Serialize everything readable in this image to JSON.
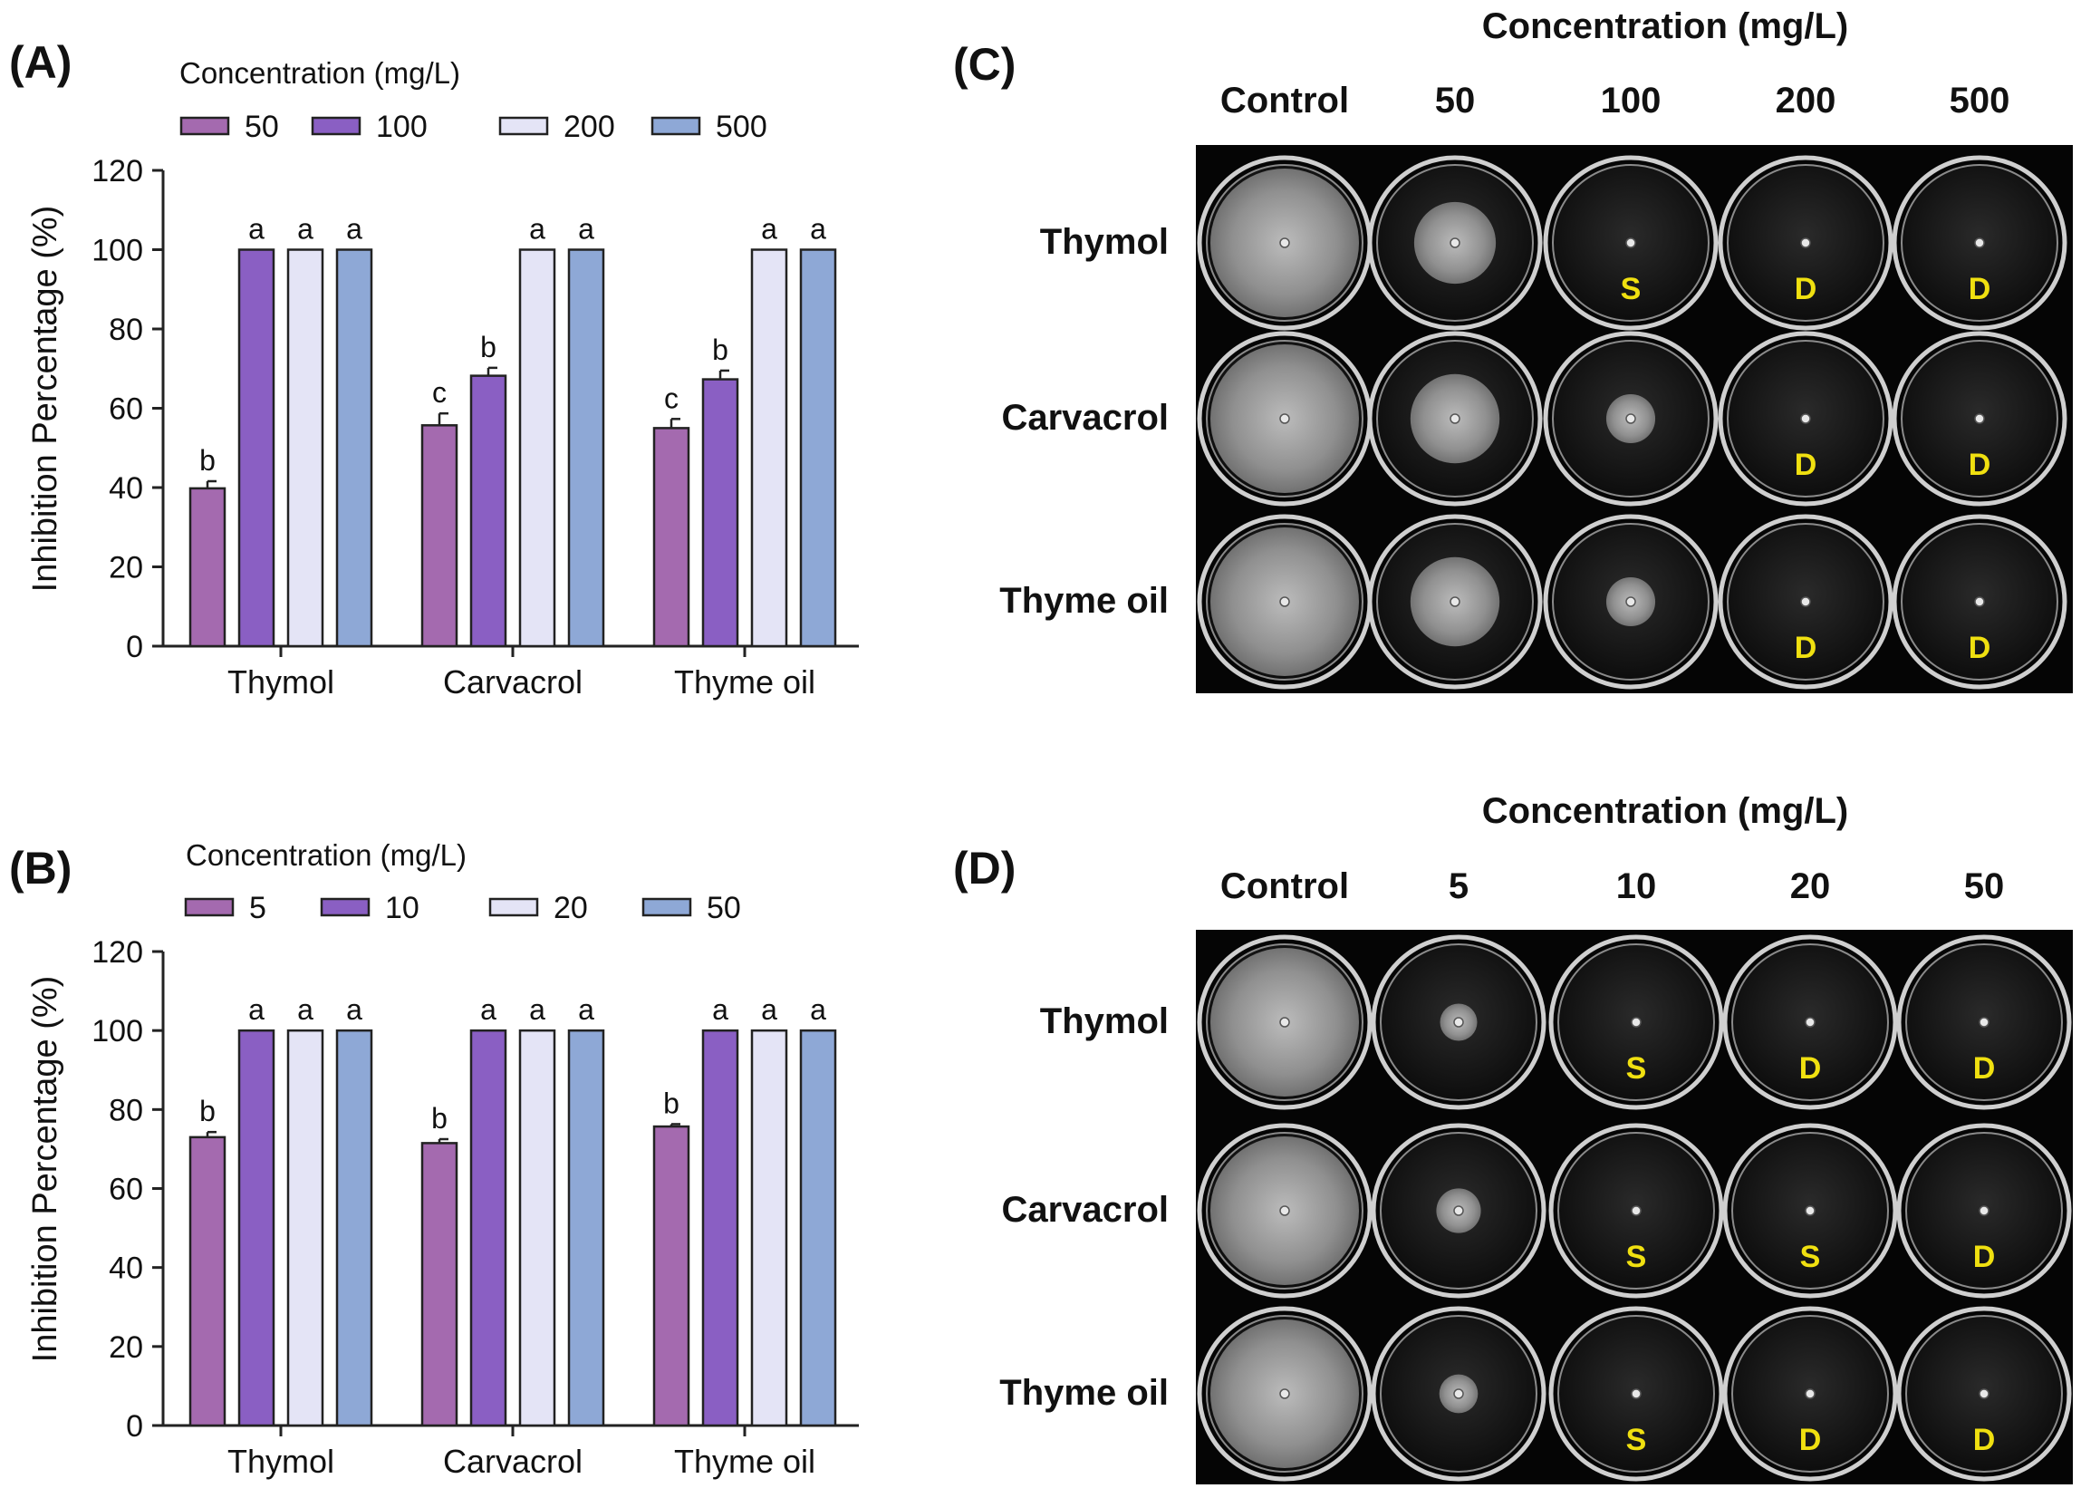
{
  "chart_data": [
    {
      "type": "bar",
      "panel": "(A)",
      "legend_title": "Concentration (mg/L)",
      "categories": [
        "Thymol",
        "Carvacrol",
        "Thyme oil"
      ],
      "ylabel": "Inhibition Percentage (%)",
      "ylim": [
        0,
        120
      ],
      "yticks": [
        0,
        20,
        40,
        60,
        80,
        100,
        120
      ],
      "series": [
        {
          "name": "50",
          "color": "#a46aaf",
          "values": [
            39.8,
            55.7,
            55.0
          ],
          "errors": [
            1.8,
            3.0,
            2.3
          ],
          "letters": [
            "b",
            "c",
            "c"
          ]
        },
        {
          "name": "100",
          "color": "#8a5fc3",
          "values": [
            100,
            68.2,
            67.3
          ],
          "errors": [
            0,
            2.0,
            2.2
          ],
          "letters": [
            "a",
            "b",
            "b"
          ]
        },
        {
          "name": "200",
          "color": "#e4e4f6",
          "values": [
            100,
            100,
            100
          ],
          "errors": [
            0,
            0,
            0
          ],
          "letters": [
            "a",
            "a",
            "a"
          ]
        },
        {
          "name": "500",
          "color": "#8ea8d6",
          "values": [
            100,
            100,
            100
          ],
          "errors": [
            0,
            0,
            0
          ],
          "letters": [
            "a",
            "a",
            "a"
          ]
        }
      ]
    },
    {
      "type": "bar",
      "panel": "(B)",
      "legend_title": "Concentration (mg/L)",
      "categories": [
        "Thymol",
        "Carvacrol",
        "Thyme oil"
      ],
      "ylabel": "Inhibition Percentage (%)",
      "ylim": [
        0,
        120
      ],
      "yticks": [
        0,
        20,
        40,
        60,
        80,
        100,
        120
      ],
      "series": [
        {
          "name": "5",
          "color": "#a46aaf",
          "values": [
            73.0,
            71.5,
            75.7
          ],
          "errors": [
            1.3,
            1.0,
            0.6
          ],
          "letters": [
            "b",
            "b",
            "b"
          ]
        },
        {
          "name": "10",
          "color": "#8a5fc3",
          "values": [
            100,
            100,
            100
          ],
          "errors": [
            0,
            0,
            0
          ],
          "letters": [
            "a",
            "a",
            "a"
          ]
        },
        {
          "name": "20",
          "color": "#e4e4f6",
          "values": [
            100,
            100,
            100
          ],
          "errors": [
            0,
            0,
            0
          ],
          "letters": [
            "a",
            "a",
            "a"
          ]
        },
        {
          "name": "50",
          "color": "#8ea8d6",
          "values": [
            100,
            100,
            100
          ],
          "errors": [
            0,
            0,
            0
          ],
          "letters": [
            "a",
            "a",
            "a"
          ]
        }
      ]
    }
  ],
  "photo_panels": [
    {
      "panel": "(C)",
      "title": "Concentration (mg/L)",
      "columns": [
        "Control",
        "50",
        "100",
        "200",
        "500"
      ],
      "rows": [
        {
          "label": "Thymol",
          "growth": [
            1.0,
            0.55,
            0.0,
            0.0,
            0.0
          ],
          "marks": [
            "",
            "",
            "S",
            "D",
            "D"
          ]
        },
        {
          "label": "Carvacrol",
          "growth": [
            1.0,
            0.6,
            0.33,
            0.0,
            0.0
          ],
          "marks": [
            "",
            "",
            "",
            "D",
            "D"
          ]
        },
        {
          "label": "Thyme oil",
          "growth": [
            1.0,
            0.6,
            0.33,
            0.0,
            0.0
          ],
          "marks": [
            "",
            "",
            "",
            "D",
            "D"
          ]
        }
      ]
    },
    {
      "panel": "(D)",
      "title": "Concentration (mg/L)",
      "columns": [
        "Control",
        "5",
        "10",
        "20",
        "50"
      ],
      "rows": [
        {
          "label": "Thymol",
          "growth": [
            1.0,
            0.25,
            0.0,
            0.0,
            0.0
          ],
          "marks": [
            "",
            "",
            "S",
            "D",
            "D"
          ]
        },
        {
          "label": "Carvacrol",
          "growth": [
            1.0,
            0.3,
            0.0,
            0.0,
            0.0
          ],
          "marks": [
            "",
            "",
            "S",
            "S",
            "D"
          ]
        },
        {
          "label": "Thyme oil",
          "growth": [
            1.0,
            0.26,
            0.0,
            0.0,
            0.0
          ],
          "marks": [
            "",
            "",
            "S",
            "D",
            "D"
          ]
        }
      ]
    }
  ]
}
